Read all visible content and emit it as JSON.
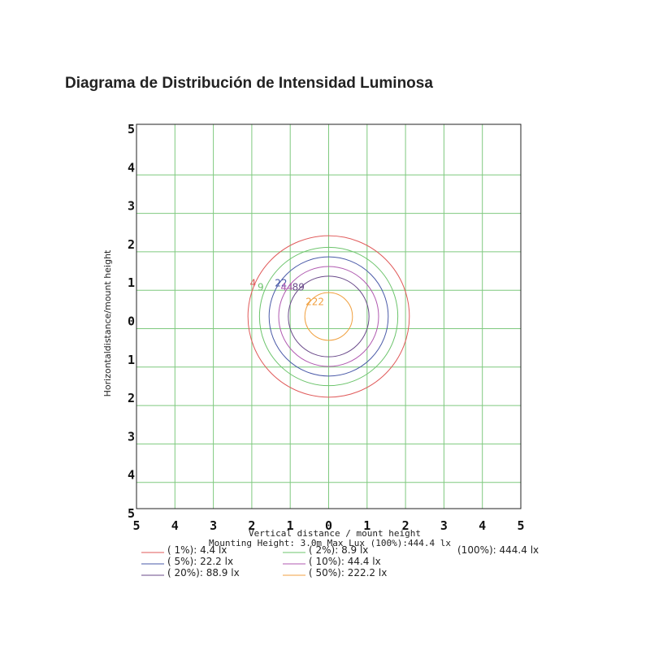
{
  "chart_data": {
    "type": "contour",
    "title": "Diagrama de Distribución de Intensidad Luminosa",
    "xlabel": "Vertical distance / mount height",
    "ylabel": "Horizontaldistance/mount height",
    "subtitle": "Mounting Height: 3.0m Max Lux (100%):444.4 lx",
    "x_ticks": [
      "5",
      "4",
      "3",
      "2",
      "1",
      "0",
      "1",
      "2",
      "3",
      "4",
      "5"
    ],
    "y_ticks": [
      "5",
      "4",
      "3",
      "2",
      "1",
      "0",
      "1",
      "2",
      "3",
      "4",
      "5"
    ],
    "xlim": [
      -5,
      5
    ],
    "ylim": [
      -5,
      5
    ],
    "grid": true,
    "grid_color": "#7fc97f",
    "series": [
      {
        "name": "( 1%): 4.4 lx",
        "percent": 1,
        "lux": 4.4,
        "radius": 2.1,
        "color": "#e05a5a",
        "label": "4"
      },
      {
        "name": "( 2%): 8.9 lx",
        "percent": 2,
        "lux": 8.9,
        "radius": 1.8,
        "color": "#6cc46c",
        "label": "9"
      },
      {
        "name": "( 5%): 22.2 lx",
        "percent": 5,
        "lux": 22.2,
        "radius": 1.55,
        "color": "#4a5aa8",
        "label": "22"
      },
      {
        "name": "( 10%): 44.4 lx",
        "percent": 10,
        "lux": 44.4,
        "radius": 1.3,
        "color": "#b05ab0",
        "label": "44"
      },
      {
        "name": "( 20%): 88.9 lx",
        "percent": 20,
        "lux": 88.9,
        "radius": 1.05,
        "color": "#6a4a8a",
        "label": "89"
      },
      {
        "name": "( 50%): 222.2 lx",
        "percent": 50,
        "lux": 222.2,
        "radius": 0.62,
        "color": "#f0a040",
        "label": "222"
      },
      {
        "name": "(100%): 444.4 lx",
        "percent": 100,
        "lux": 444.4,
        "radius": 0,
        "color": "#ffffff",
        "label": ""
      }
    ]
  }
}
